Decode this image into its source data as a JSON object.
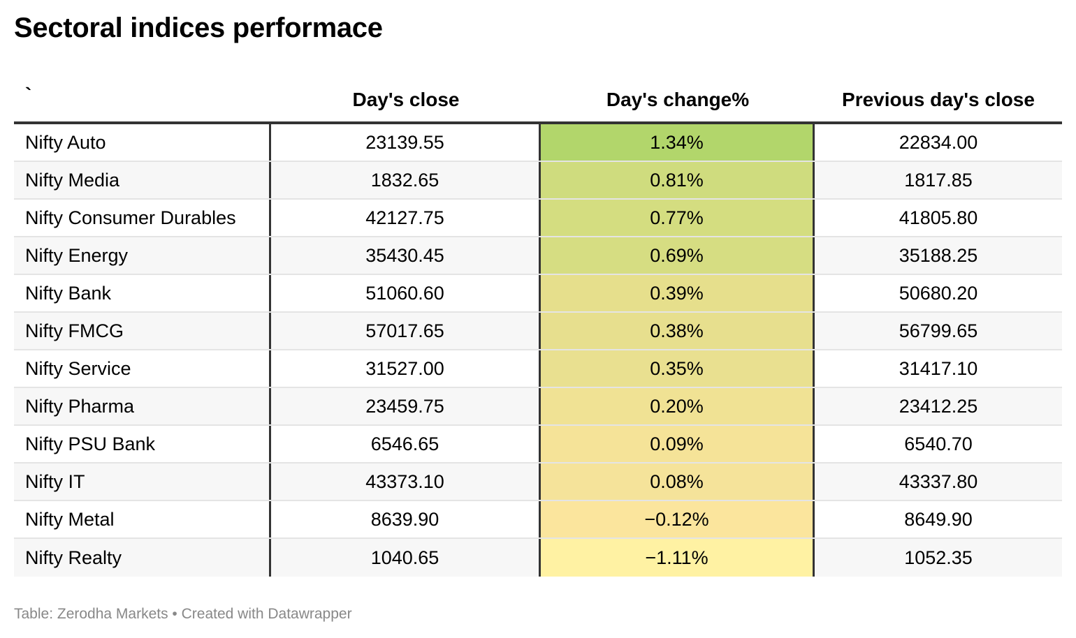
{
  "chart_data": {
    "type": "table",
    "title": "Sectoral indices performace",
    "columns": [
      "`",
      "Day's close",
      "Day's change%",
      "Previous day's close"
    ],
    "rows": [
      {
        "name": "Nifty Auto",
        "close": "23139.55",
        "change": "1.34%",
        "change_value": 1.34,
        "prev": "22834.00"
      },
      {
        "name": "Nifty Media",
        "close": "1832.65",
        "change": "0.81%",
        "change_value": 0.81,
        "prev": "1817.85"
      },
      {
        "name": "Nifty Consumer Durables",
        "close": "42127.75",
        "change": "0.77%",
        "change_value": 0.77,
        "prev": "41805.80"
      },
      {
        "name": "Nifty Energy",
        "close": "35430.45",
        "change": "0.69%",
        "change_value": 0.69,
        "prev": "35188.25"
      },
      {
        "name": "Nifty Bank",
        "close": "51060.60",
        "change": "0.39%",
        "change_value": 0.39,
        "prev": "50680.20"
      },
      {
        "name": "Nifty FMCG",
        "close": "57017.65",
        "change": "0.38%",
        "change_value": 0.38,
        "prev": "56799.65"
      },
      {
        "name": "Nifty Service",
        "close": "31527.00",
        "change": "0.35%",
        "change_value": 0.35,
        "prev": "31417.10"
      },
      {
        "name": "Nifty Pharma",
        "close": "23459.75",
        "change": "0.20%",
        "change_value": 0.2,
        "prev": "23412.25"
      },
      {
        "name": "Nifty PSU Bank",
        "close": "6546.65",
        "change": "0.09%",
        "change_value": 0.09,
        "prev": "6540.70"
      },
      {
        "name": "Nifty IT",
        "close": "43373.10",
        "change": "0.08%",
        "change_value": 0.08,
        "prev": "43337.80"
      },
      {
        "name": "Nifty Metal",
        "close": "8639.90",
        "change": "−0.12%",
        "change_value": -0.12,
        "prev": "8649.90"
      },
      {
        "name": "Nifty Realty",
        "close": "1040.65",
        "change": "−1.11%",
        "change_value": -1.11,
        "prev": "1052.35"
      }
    ],
    "heatmap_colors": [
      "#b2d66b",
      "#cfdc7e",
      "#d4dd80",
      "#d6dd82",
      "#e6df8c",
      "#e7df8e",
      "#e9e090",
      "#f0e294",
      "#f5e398",
      "#f5e39a",
      "#fbe59d",
      "#fff2a3"
    ]
  },
  "footer": "Table: Zerodha Markets • Created with Datawrapper"
}
